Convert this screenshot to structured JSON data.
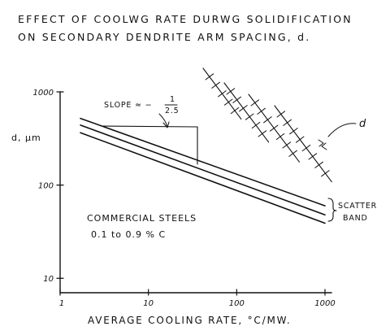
{
  "chart_data": {
    "type": "line",
    "title_line1": "EFFECT OF COOLWG RATE DURWG SOLIDIFICATION",
    "title_line2": "ON SECONDARY DENDRITE ARM SPACING, d.",
    "ylabel": "d, μm",
    "xlabel": "AVERAGE COOLING RATE, °C/MW.",
    "xscale": "log",
    "yscale": "log",
    "xlim": [
      1,
      1000
    ],
    "ylim": [
      7,
      1000
    ],
    "x_ticks": [
      "1",
      "10",
      "100",
      "1000"
    ],
    "y_ticks": [
      "10",
      "100",
      "1000"
    ],
    "series": [
      {
        "x": [
          1.7,
          1000
        ],
        "y": [
          520,
          60
        ]
      },
      {
        "x": [
          1.7,
          1000
        ],
        "y": [
          440,
          48
        ]
      },
      {
        "x": [
          1.7,
          1000
        ],
        "y": [
          365,
          39
        ]
      }
    ],
    "annotations": {
      "slope_label": "SLOPE ≈ −",
      "slope_num": "1",
      "slope_den": "2.5",
      "scatter_line1": "SCATTER",
      "scatter_line2": "BAND",
      "material_line1": "COMMERCIAL STEELS",
      "material_line2": "0.1 to 0.9 % C",
      "dendrite_label": "d"
    }
  }
}
